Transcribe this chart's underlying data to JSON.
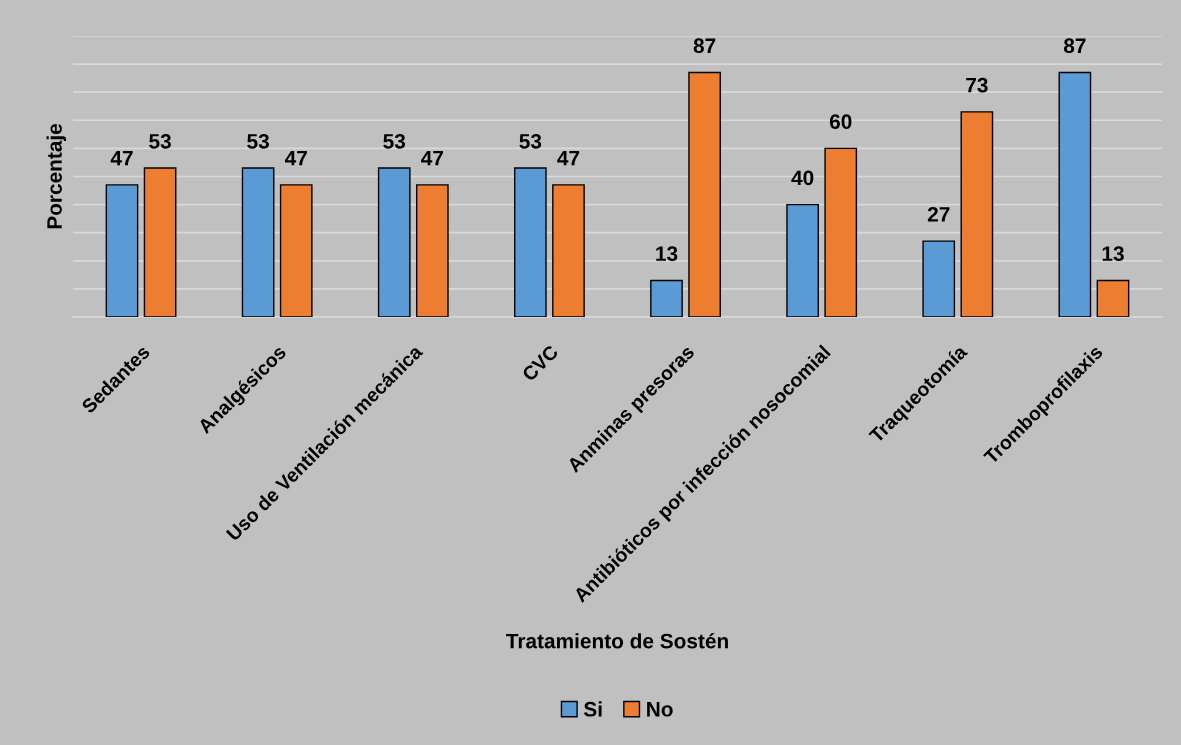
{
  "chart_data": {
    "type": "bar",
    "xlabel": "Tratamiento de Sostén",
    "ylabel": "Porcentaje",
    "categories": [
      "Sedantes",
      "Analgésicos",
      "Uso de Ventilación mecánica",
      "CVC",
      "Anminas presoras",
      "Antibióticos por infección nosocomial",
      "Traqueotomía",
      "Tromboprofilaxis"
    ],
    "series": [
      {
        "name": "Si",
        "color": "#5b9bd5",
        "values": [
          47,
          53,
          53,
          53,
          13,
          40,
          27,
          87
        ]
      },
      {
        "name": "No",
        "color": "#ed7d31",
        "values": [
          53,
          47,
          47,
          47,
          87,
          60,
          73,
          13
        ]
      }
    ],
    "ylim": [
      0,
      100
    ],
    "yticks": [
      {
        "value": 0,
        "label": null
      },
      {
        "value": 10,
        "label": null
      },
      {
        "value": 20,
        "label": null
      },
      {
        "value": 30,
        "label": null
      },
      {
        "value": 40,
        "label": null
      },
      {
        "value": 50,
        "label": null
      },
      {
        "value": 60,
        "label": null
      },
      {
        "value": 70,
        "label": null
      },
      {
        "value": 80,
        "label": null
      },
      {
        "value": 90,
        "label": null
      },
      {
        "value": 100,
        "label": null
      }
    ],
    "tick_labels": "x",
    "grid": "y",
    "legend": "bottom",
    "data_labels": true
  }
}
